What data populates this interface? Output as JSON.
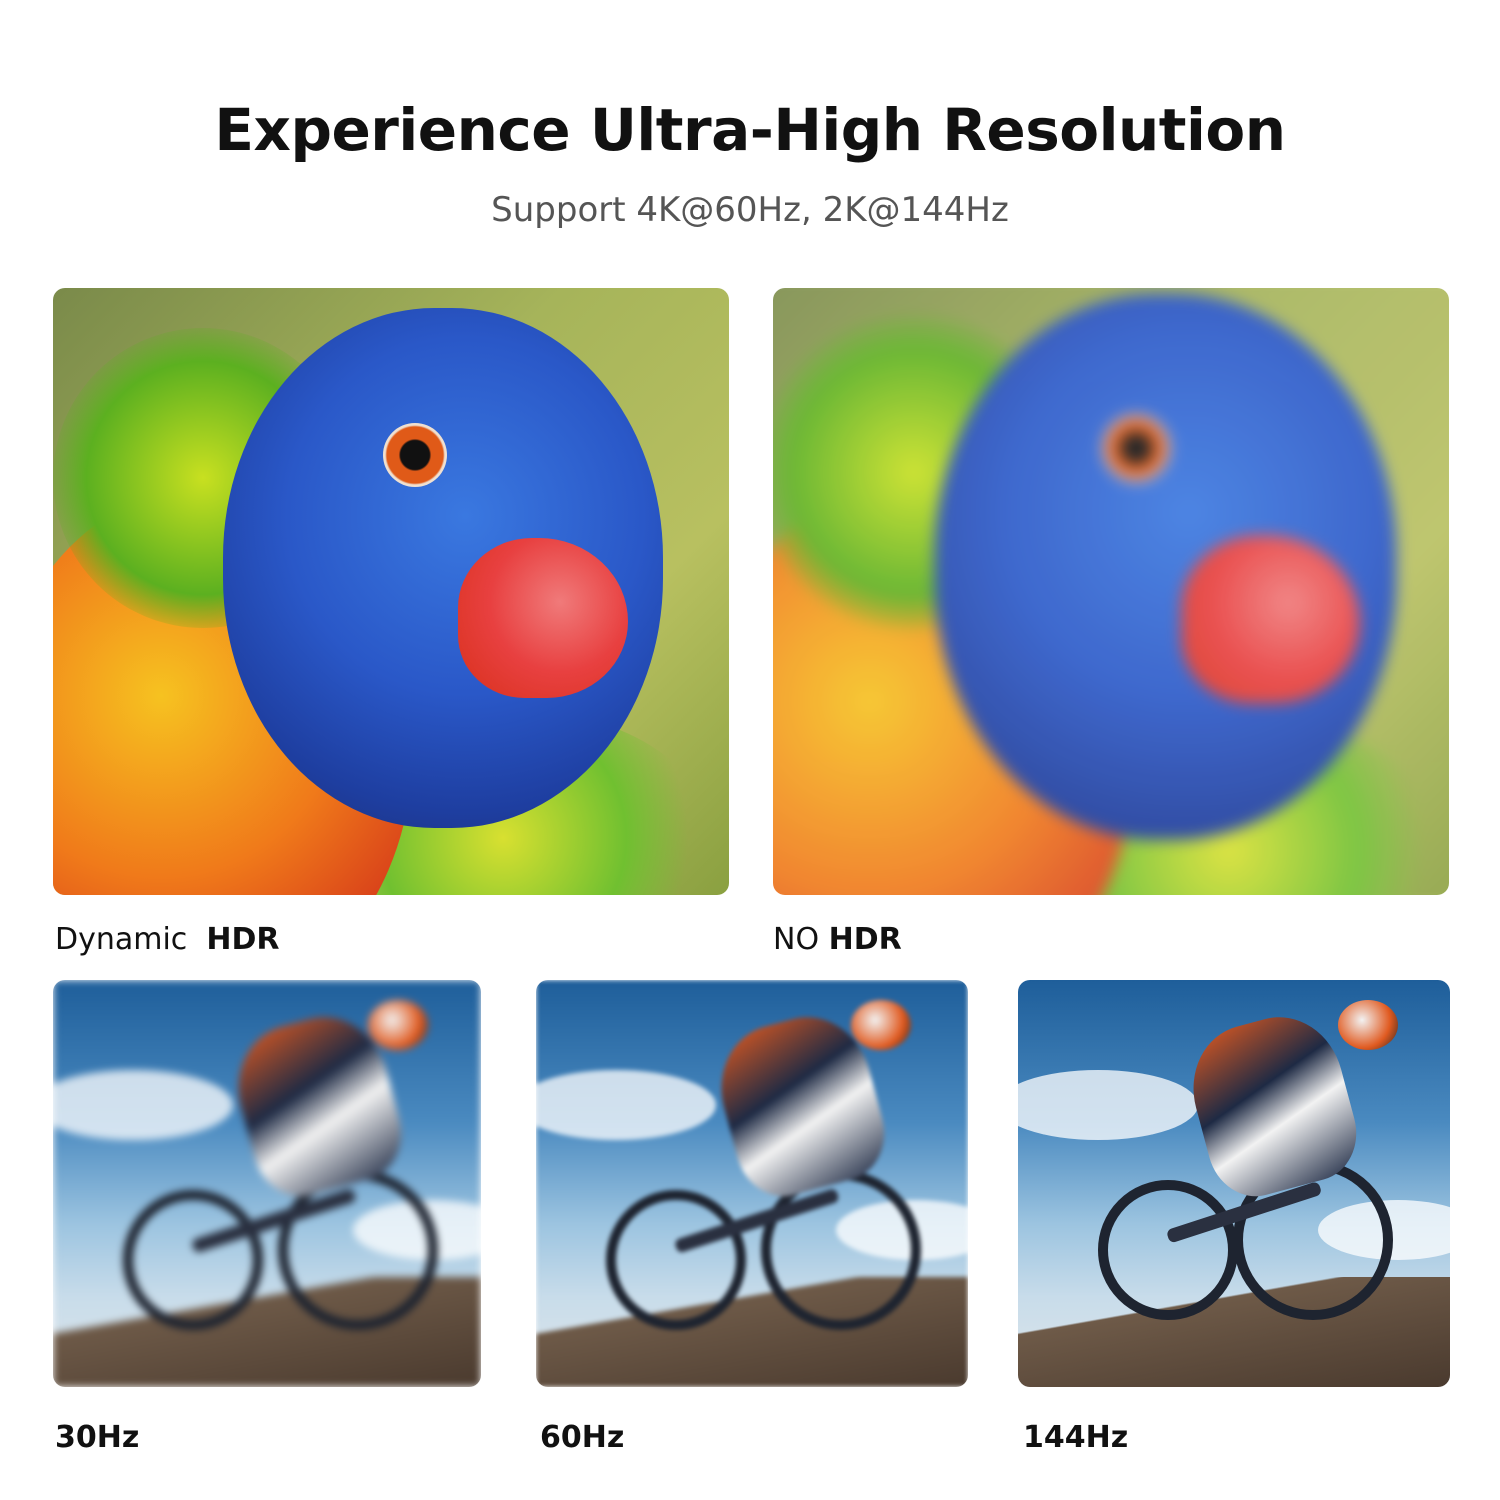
{
  "header": {
    "title": "Experience Ultra-High Resolution",
    "subtitle": "Support 4K@60Hz, 2K@144Hz"
  },
  "hdr_comparison": [
    {
      "label_prefix": "Dynamic",
      "label_bold": "HDR",
      "image": "parrot-sharp"
    },
    {
      "label_prefix": "NO",
      "label_bold": "HDR",
      "image": "parrot-blurred"
    }
  ],
  "refresh_comparison": [
    {
      "label": "30Hz",
      "image": "bike-heavy-blur"
    },
    {
      "label": "60Hz",
      "image": "bike-light-blur"
    },
    {
      "label": "144Hz",
      "image": "bike-sharp"
    }
  ]
}
